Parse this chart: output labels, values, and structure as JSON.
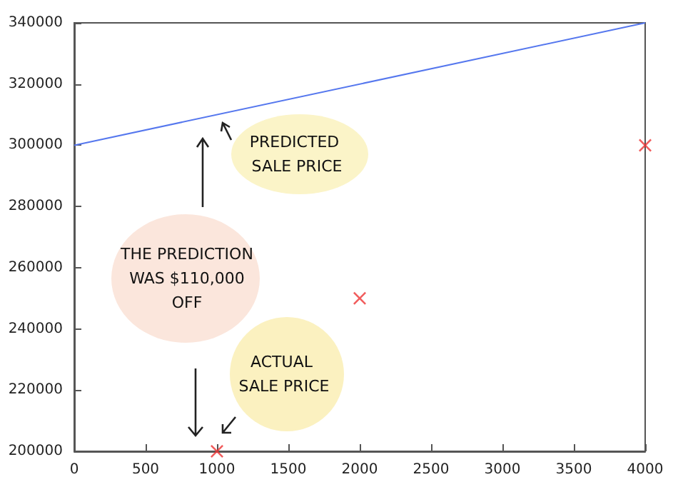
{
  "chart_data": {
    "type": "scatter",
    "series": [
      {
        "type": "line",
        "color": "#5577ee",
        "x": [
          0,
          4000
        ],
        "values": [
          300000,
          340000
        ],
        "marker": "none"
      },
      {
        "color": "#ee3333",
        "x": [
          1000,
          2000,
          4000
        ],
        "values": [
          200000,
          250000,
          300000
        ],
        "marker": "cross"
      }
    ],
    "xlim": [
      0,
      4000
    ],
    "xticks": [
      0,
      500,
      1000,
      1500,
      2000,
      2500,
      3000,
      3500,
      4000
    ],
    "ylim": [
      200000,
      340000
    ],
    "yticks": [
      200000,
      220000,
      240000,
      260000,
      280000,
      300000,
      320000,
      340000
    ],
    "grid": false,
    "annotations": [
      "PREDICTED SALE PRICE",
      "THE PREDICTION WAS $110,000 OFF",
      "ACTUAL SALE PRICE"
    ]
  }
}
